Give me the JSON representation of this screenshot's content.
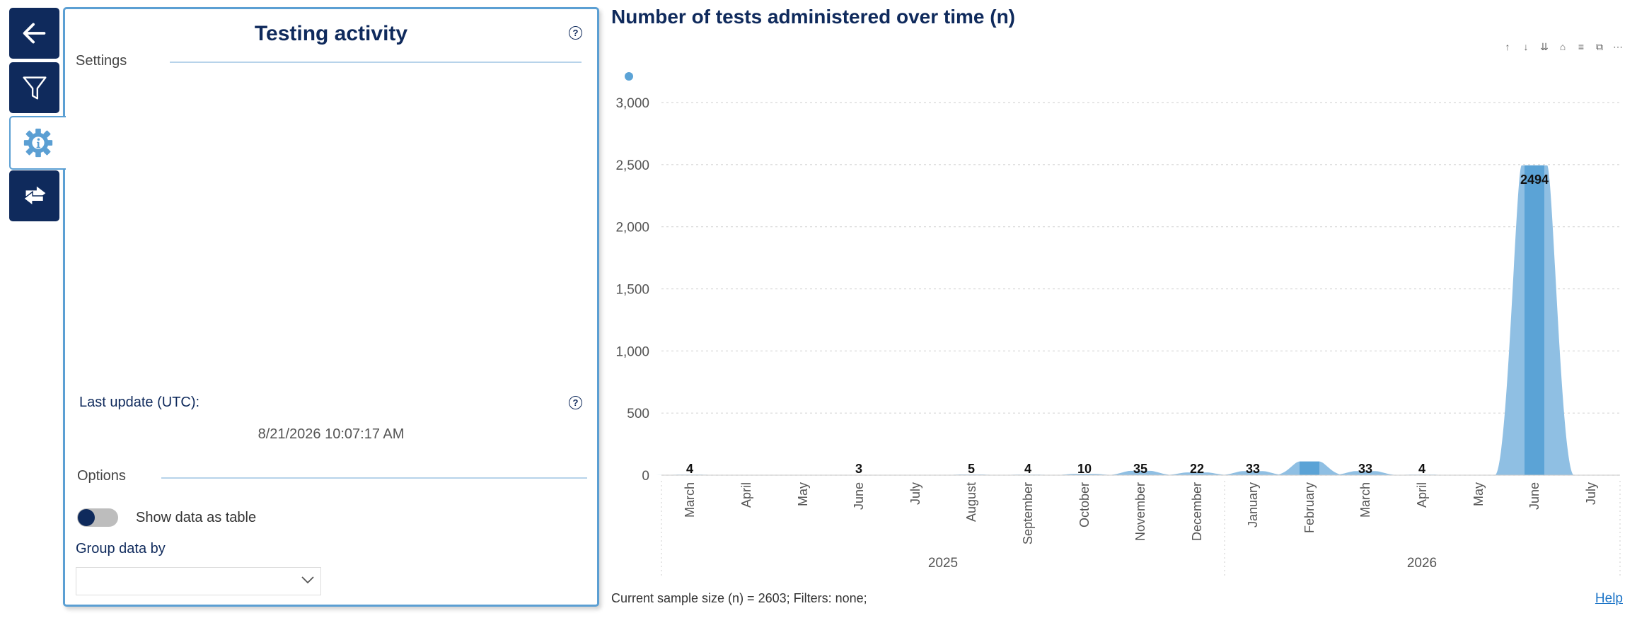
{
  "nav": {
    "back_icon": "arrow-left-icon",
    "filter_icon": "filter-icon",
    "settings_icon": "gear-info-icon",
    "swap_icon": "swap-arrows-icon"
  },
  "panel": {
    "title": "Testing activity",
    "help_glyph": "?",
    "settings_label": "Settings",
    "last_update_label": "Last update (UTC):",
    "last_update_value": "8/21/2026 10:07:17 AM",
    "options_label": "Options",
    "toggle_label": "Show data as table",
    "toggle_on": false,
    "group_label": "Group data by",
    "group_value": ""
  },
  "toolbar": {
    "icons": [
      "sort-asc-icon",
      "sort-desc-icon",
      "drill-icon",
      "expand-icon",
      "filter-icon",
      "focus-mode-icon",
      "more-options-icon"
    ]
  },
  "footer": {
    "sample_text": "Current sample size (n) = 2603; Filters: none;",
    "help_link": "Help"
  },
  "colors": {
    "navy": "#0f2a5c",
    "area_light": "#8fbfe3",
    "bar_mid": "#5ba3d6",
    "accent_border": "#5b9fd3"
  },
  "chart_data": {
    "type": "area",
    "title": "Number of tests administered over time (n)",
    "categories": [
      "March",
      "April",
      "May",
      "June",
      "July",
      "August",
      "September",
      "October",
      "November",
      "December",
      "January",
      "February",
      "March",
      "April",
      "May",
      "June",
      "July"
    ],
    "years": [
      {
        "label": "2025",
        "months": [
          "March",
          "April",
          "May",
          "June",
          "July",
          "August",
          "September",
          "October",
          "November",
          "December"
        ]
      },
      {
        "label": "2026",
        "months": [
          "January",
          "February",
          "March",
          "April",
          "May",
          "June",
          "July"
        ]
      }
    ],
    "values": [
      4,
      0,
      0,
      3,
      0,
      5,
      4,
      10,
      35,
      22,
      33,
      110,
      33,
      4,
      0,
      2494,
      0
    ],
    "data_labels": [
      "4",
      "",
      "",
      "3",
      "",
      "5",
      "4",
      "10",
      "35",
      "22",
      "33",
      "",
      "33",
      "4",
      "",
      "2494",
      ""
    ],
    "ylim": [
      0,
      3000
    ],
    "yticks": [
      0,
      500,
      1000,
      1500,
      2000,
      2500,
      3000
    ],
    "ytick_labels": [
      "0",
      "500",
      "1,000",
      "1,500",
      "2,000",
      "2,500",
      "3,000"
    ],
    "grid": true,
    "legend": "top-left"
  }
}
